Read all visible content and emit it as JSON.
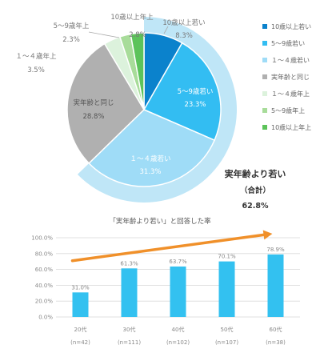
{
  "colors": {
    "highlight_arc": "#bfe6f7",
    "trend_arrow": "#f0902a",
    "bar": "#33c1f0",
    "grid": "#d9d9d9"
  },
  "chart_data": [
    {
      "type": "pie",
      "slices": [
        {
          "label": "10歳以上若い",
          "value": 8.3,
          "value_label": "8.3%",
          "color": "#0b82cc"
        },
        {
          "label": "5～9歳若い",
          "value": 23.3,
          "value_label": "23.3%",
          "color": "#33bdf2"
        },
        {
          "label": "１～４歳若い",
          "value": 31.3,
          "value_label": "31.3%",
          "color": "#9fdcf7"
        },
        {
          "label": "実年齢と同じ",
          "value": 28.8,
          "value_label": "28.8%",
          "color": "#b0b0b0"
        },
        {
          "label": "１～４歳年上",
          "value": 3.5,
          "value_label": "3.5%",
          "color": "#dcf2dc"
        },
        {
          "label": "5～9歳年上",
          "value": 2.3,
          "value_label": "2.3%",
          "color": "#a8dc9a"
        },
        {
          "label": "10歳以上年上",
          "value": 2.8,
          "value_label": "2.8%",
          "color": "#5cc35a"
        }
      ],
      "legend": [
        "10歳以上若い",
        "5～9歳若い",
        "１～４歳若い",
        "実年齢と同じ",
        "１～４歳年上",
        "5～9歳年上",
        "10歳以上年上"
      ],
      "legend_placement": "right",
      "annotation": {
        "line1": "実年齢より若い",
        "line2": "（合計）",
        "value": "62.8%"
      }
    },
    {
      "type": "bar",
      "title": "「実年齢より若い」と回答した率",
      "categories": [
        "20代",
        "30代",
        "40代",
        "50代",
        "60代"
      ],
      "sample_sizes": [
        "(n=42)",
        "(n=111)",
        "(n=102)",
        "(n=107)",
        "(n=38)"
      ],
      "values": [
        31.0,
        61.3,
        63.7,
        70.1,
        78.9
      ],
      "value_labels": [
        "31.0%",
        "61.3%",
        "63.7%",
        "70.1%",
        "78.9%"
      ],
      "ylim": [
        0,
        100
      ],
      "yticks": [
        "0.0%",
        "20.0%",
        "40.0%",
        "60.0%",
        "80.0%",
        "100.0%"
      ],
      "grid": true
    }
  ]
}
